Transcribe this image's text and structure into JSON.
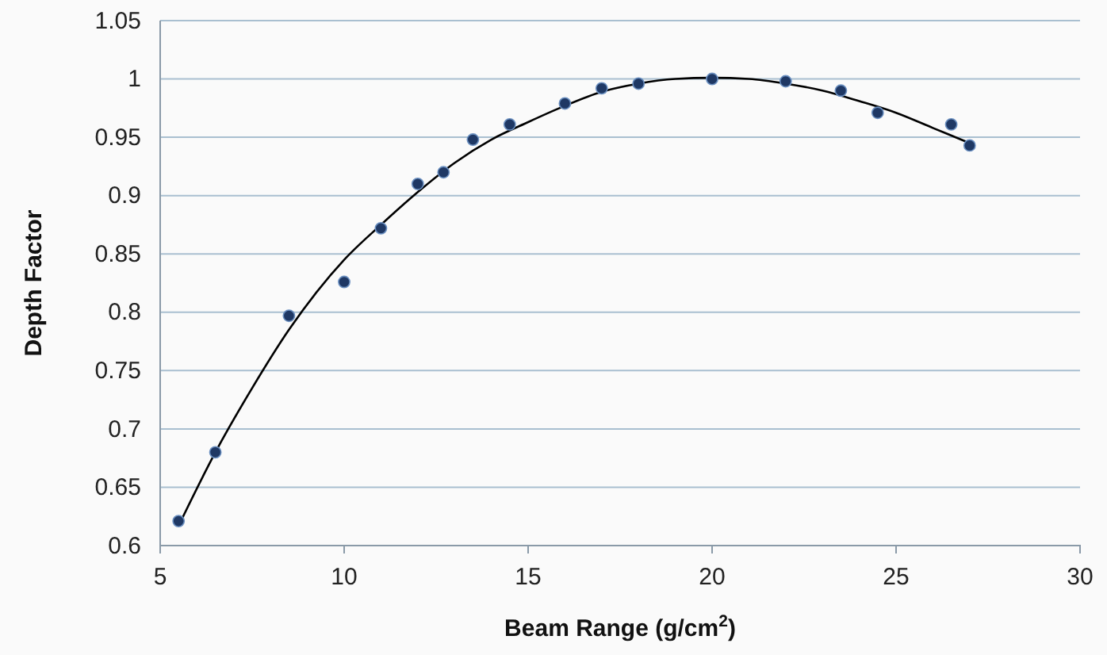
{
  "chart_data": {
    "type": "scatter",
    "xlabel": "Beam Range (g/cm$^{2}$)",
    "ylabel": "Depth Factor",
    "xlim": [
      5,
      30
    ],
    "xticks": [
      5,
      10,
      15,
      20,
      25,
      30
    ],
    "ylim": [
      0.6,
      1.05
    ],
    "yticks": [
      0.6,
      0.65,
      0.7,
      0.75,
      0.8,
      0.85,
      0.9,
      0.95,
      1,
      1.05
    ],
    "grid": "y",
    "marker": "circle",
    "series": [
      {
        "color": "#1f3864",
        "x": [
          5.5,
          6.5,
          8.5,
          10,
          11,
          12,
          12.7,
          13.5,
          14.5,
          16,
          17,
          18,
          20,
          22,
          23.5,
          24.5,
          26.5,
          27
        ],
        "values": [
          0.621,
          0.68,
          0.797,
          0.826,
          0.872,
          0.91,
          0.92,
          0.948,
          0.961,
          0.979,
          0.992,
          0.996,
          1.0,
          0.998,
          0.99,
          0.971,
          0.961,
          0.943
        ]
      },
      {
        "type": "line",
        "color": "#000000",
        "marker": "none",
        "line_style": "solid",
        "x": [
          5.5,
          6.5,
          7.5,
          8.5,
          10,
          11,
          12,
          13,
          14,
          15,
          16,
          17,
          18,
          19,
          20,
          21,
          22,
          23,
          24,
          25,
          26,
          27
        ],
        "values": [
          0.617,
          0.68,
          0.735,
          0.785,
          0.845,
          0.875,
          0.903,
          0.928,
          0.948,
          0.963,
          0.977,
          0.989,
          0.996,
          1.0,
          1.001,
          1.0,
          0.996,
          0.99,
          0.981,
          0.971,
          0.958,
          0.945
        ]
      }
    ]
  }
}
